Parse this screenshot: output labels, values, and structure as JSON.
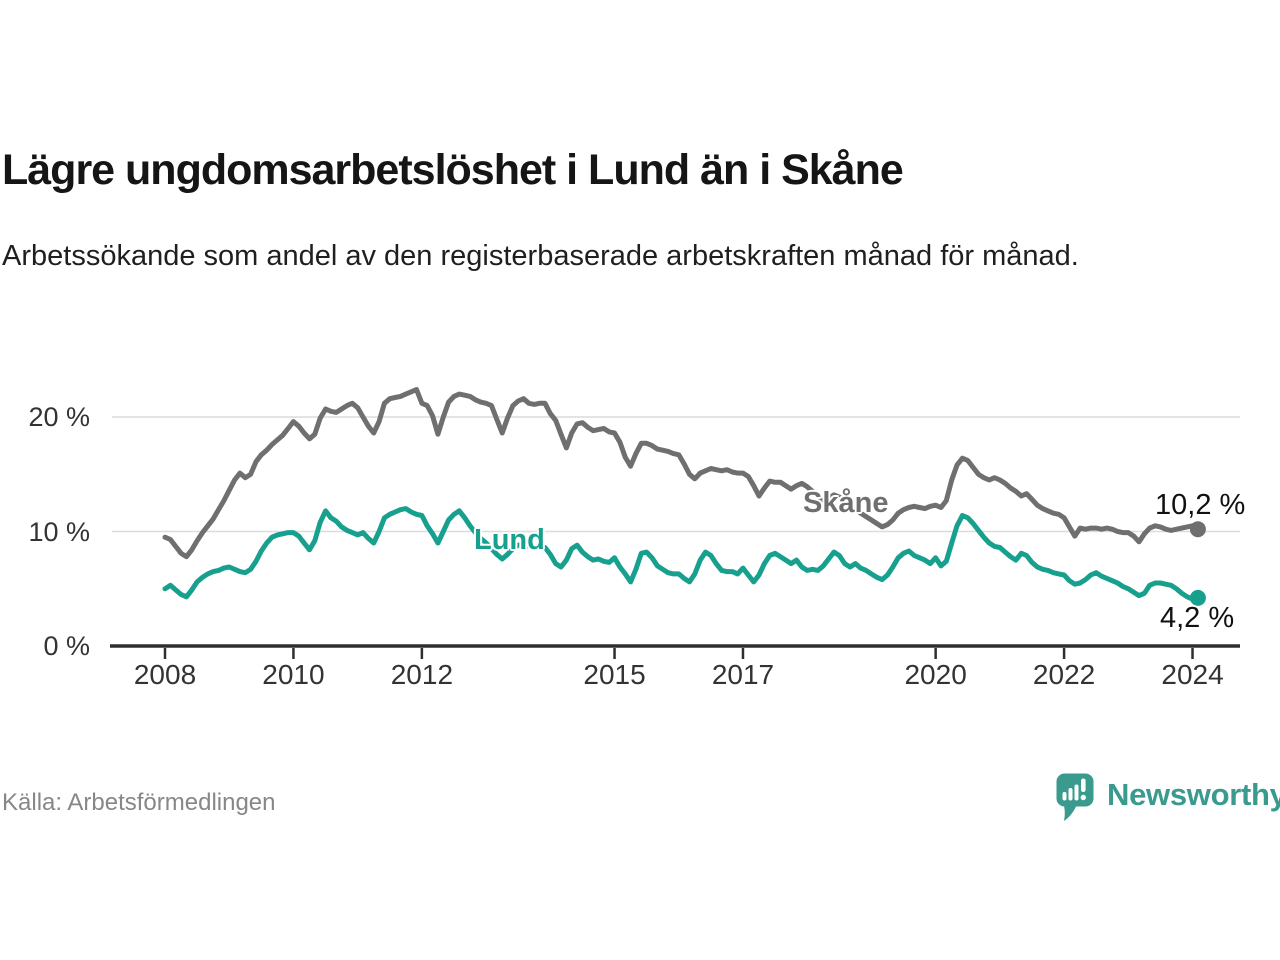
{
  "chart_data": {
    "type": "line",
    "title": "Lägre ungdomsarbetslöshet i Lund än i Skåne",
    "subtitle": "Arbetssökande som andel av den registerbaserade arbetskraften månad för månad.",
    "source": "Källa: Arbetsförmedlingen",
    "x_start": "2008-01",
    "x_end": "2024-02",
    "frequency": "monthly",
    "x_ticks": [
      2008,
      2010,
      2012,
      2015,
      2017,
      2020,
      2022,
      2024
    ],
    "x_ticklabels": [
      "2008",
      "2010",
      "2012",
      "2015",
      "2017",
      "2020",
      "2022",
      "2024"
    ],
    "y_ticks": [
      0,
      10,
      20
    ],
    "y_ticklabels": [
      "0 %",
      "10 %",
      "20 %"
    ],
    "ylim": [
      0,
      23
    ],
    "grid": "horizontal",
    "legend_position": "inline-labels",
    "axis_color": "#2e2e2e",
    "grid_color": "#dcdcdc",
    "series": [
      {
        "name": "Skåne",
        "color": "#6f6f6f",
        "end_label": "10,2 %",
        "end_value": 10.2,
        "values": [
          9.5,
          9.3,
          8.7,
          8.1,
          7.8,
          8.4,
          9.2,
          9.9,
          10.5,
          11.1,
          11.9,
          12.7,
          13.6,
          14.5,
          15.1,
          14.7,
          15.0,
          16.1,
          16.7,
          17.1,
          17.6,
          18.0,
          18.4,
          19.0,
          19.6,
          19.2,
          18.6,
          18.1,
          18.5,
          19.9,
          20.7,
          20.5,
          20.4,
          20.7,
          21.0,
          21.2,
          20.8,
          20.0,
          19.2,
          18.6,
          19.6,
          21.2,
          21.6,
          21.7,
          21.8,
          22.0,
          22.2,
          22.4,
          21.2,
          21.0,
          20.1,
          18.5,
          20.0,
          21.3,
          21.8,
          22.0,
          21.9,
          21.8,
          21.5,
          21.3,
          21.2,
          21.0,
          19.8,
          18.6,
          19.9,
          21.0,
          21.4,
          21.6,
          21.2,
          21.1,
          21.2,
          21.2,
          20.3,
          19.7,
          18.5,
          17.3,
          18.6,
          19.4,
          19.5,
          19.1,
          18.8,
          18.9,
          19.0,
          18.7,
          18.6,
          17.8,
          16.5,
          15.7,
          16.8,
          17.7,
          17.7,
          17.5,
          17.2,
          17.1,
          17.0,
          16.8,
          16.7,
          15.9,
          15.0,
          14.6,
          15.1,
          15.3,
          15.5,
          15.4,
          15.3,
          15.4,
          15.2,
          15.1,
          15.1,
          14.8,
          14.0,
          13.1,
          13.8,
          14.4,
          14.3,
          14.3,
          14.0,
          13.7,
          14.0,
          14.2,
          13.9,
          13.5,
          13.0,
          12.6,
          12.9,
          13.2,
          13.0,
          12.6,
          12.2,
          11.9,
          11.6,
          11.3,
          11.0,
          10.7,
          10.4,
          10.6,
          11.0,
          11.6,
          11.9,
          12.1,
          12.2,
          12.1,
          12.0,
          12.2,
          12.3,
          12.1,
          12.7,
          14.5,
          15.8,
          16.4,
          16.2,
          15.6,
          15.0,
          14.7,
          14.5,
          14.7,
          14.5,
          14.2,
          13.8,
          13.5,
          13.1,
          13.3,
          12.8,
          12.3,
          12.0,
          11.8,
          11.6,
          11.5,
          11.2,
          10.4,
          9.6,
          10.3,
          10.2,
          10.3,
          10.3,
          10.2,
          10.3,
          10.2,
          10.0,
          9.9,
          9.9,
          9.6,
          9.1,
          9.8,
          10.3,
          10.5,
          10.4,
          10.2,
          10.1,
          10.2,
          10.3,
          10.4,
          10.5,
          10.2
        ]
      },
      {
        "name": "Lund",
        "color": "#18a08e",
        "end_label": "4,2 %",
        "end_value": 4.2,
        "values": [
          5.0,
          5.3,
          4.9,
          4.5,
          4.3,
          4.9,
          5.6,
          6.0,
          6.3,
          6.5,
          6.6,
          6.8,
          6.9,
          6.7,
          6.5,
          6.4,
          6.7,
          7.4,
          8.3,
          9.0,
          9.5,
          9.7,
          9.8,
          9.9,
          9.9,
          9.6,
          9.0,
          8.4,
          9.2,
          10.8,
          11.8,
          11.2,
          10.9,
          10.4,
          10.1,
          9.9,
          9.7,
          9.9,
          9.4,
          9.0,
          10.0,
          11.2,
          11.5,
          11.7,
          11.9,
          12.0,
          11.7,
          11.5,
          11.4,
          10.5,
          9.8,
          9.0,
          10.0,
          11.0,
          11.5,
          11.8,
          11.2,
          10.5,
          9.9,
          9.4,
          9.0,
          8.5,
          8.0,
          7.6,
          8.0,
          8.5,
          8.8,
          8.9,
          8.7,
          8.6,
          8.7,
          8.6,
          8.0,
          7.2,
          6.9,
          7.5,
          8.5,
          8.8,
          8.2,
          7.8,
          7.5,
          7.6,
          7.4,
          7.3,
          7.7,
          6.9,
          6.3,
          5.6,
          6.7,
          8.1,
          8.2,
          7.7,
          7.0,
          6.7,
          6.4,
          6.3,
          6.3,
          5.9,
          5.6,
          6.3,
          7.5,
          8.2,
          7.9,
          7.2,
          6.6,
          6.5,
          6.5,
          6.3,
          6.8,
          6.2,
          5.6,
          6.2,
          7.2,
          7.9,
          8.1,
          7.8,
          7.5,
          7.2,
          7.5,
          6.9,
          6.6,
          6.7,
          6.6,
          7.0,
          7.6,
          8.2,
          7.9,
          7.2,
          6.9,
          7.2,
          6.8,
          6.6,
          6.3,
          6.0,
          5.8,
          6.2,
          6.9,
          7.7,
          8.1,
          8.3,
          7.9,
          7.7,
          7.5,
          7.2,
          7.7,
          7.0,
          7.4,
          9.0,
          10.5,
          11.4,
          11.2,
          10.7,
          10.1,
          9.5,
          9.0,
          8.7,
          8.6,
          8.2,
          7.8,
          7.5,
          8.1,
          7.9,
          7.3,
          6.9,
          6.7,
          6.6,
          6.4,
          6.3,
          6.2,
          5.7,
          5.4,
          5.5,
          5.8,
          6.2,
          6.4,
          6.1,
          5.9,
          5.7,
          5.5,
          5.2,
          5.0,
          4.7,
          4.4,
          4.6,
          5.3,
          5.5,
          5.5,
          5.4,
          5.3,
          5.0,
          4.6,
          4.3,
          4.1,
          4.2
        ]
      }
    ]
  },
  "branding": {
    "logo_text": "Newsworthy",
    "logo_color": "#3a9a8e"
  }
}
